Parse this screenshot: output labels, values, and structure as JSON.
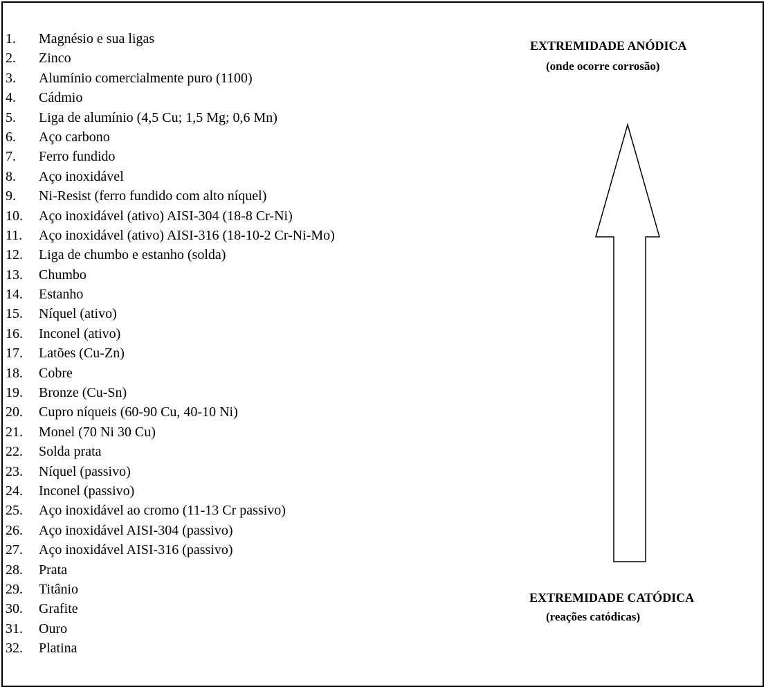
{
  "items": [
    {
      "num": "1.",
      "name": "Magnésio e sua ligas"
    },
    {
      "num": "2.",
      "name": "Zinco"
    },
    {
      "num": "3.",
      "name": "Alumínio comercialmente puro (1100)"
    },
    {
      "num": "4.",
      "name": "Cádmio"
    },
    {
      "num": "5.",
      "name": "Liga de alumínio (4,5 Cu; 1,5 Mg; 0,6 Mn)"
    },
    {
      "num": "6.",
      "name": "Aço carbono"
    },
    {
      "num": "7.",
      "name": "Ferro fundido"
    },
    {
      "num": "8.",
      "name": "Aço inoxidável"
    },
    {
      "num": "9.",
      "name": "Ni-Resist (ferro fundido com alto níquel)"
    },
    {
      "num": "10.",
      "name": "Aço inoxidável (ativo) AISI-304 (18-8 Cr-Ni)"
    },
    {
      "num": "11.",
      "name": "Aço inoxidável (ativo) AISI-316 (18-10-2 Cr-Ni-Mo)"
    },
    {
      "num": "12.",
      "name": "Liga de chumbo e estanho (solda)"
    },
    {
      "num": "13.",
      "name": "Chumbo"
    },
    {
      "num": "14.",
      "name": "Estanho"
    },
    {
      "num": "15.",
      "name": "Níquel (ativo)"
    },
    {
      "num": "16.",
      "name": "Inconel (ativo)"
    },
    {
      "num": "17.",
      "name": "Latões (Cu-Zn)"
    },
    {
      "num": "18.",
      "name": "Cobre"
    },
    {
      "num": "19.",
      "name": "Bronze (Cu-Sn)"
    },
    {
      "num": "20.",
      "name": "Cupro níqueis (60-90 Cu, 40-10 Ni)"
    },
    {
      "num": "21.",
      "name": "Monel (70 Ni 30 Cu)"
    },
    {
      "num": "22.",
      "name": "Solda prata"
    },
    {
      "num": "23.",
      "name": "Níquel (passivo)"
    },
    {
      "num": "24.",
      "name": "Inconel (passivo)"
    },
    {
      "num": "25.",
      "name": "Aço inoxidável ao cromo (11-13 Cr passivo)"
    },
    {
      "num": "26.",
      "name": "Aço inoxidável AISI-304 (passivo)"
    },
    {
      "num": "27.",
      "name": "Aço inoxidável AISI-316 (passivo)"
    },
    {
      "num": "28.",
      "name": "Prata"
    },
    {
      "num": "29.",
      "name": "Titânio"
    },
    {
      "num": "30.",
      "name": "Grafite"
    },
    {
      "num": "31.",
      "name": "Ouro"
    },
    {
      "num": "32.",
      "name": "Platina"
    }
  ],
  "anodic": {
    "title": "EXTREMIDADE ANÓDICA",
    "subtitle": "(onde ocorre corrosão)"
  },
  "cathodic": {
    "title": "EXTREMIDADE CATÓDICA",
    "subtitle": "(reações catódicas)"
  },
  "arrow": {
    "direction": "up",
    "stroke": "#000000",
    "fill": "#ffffff"
  }
}
